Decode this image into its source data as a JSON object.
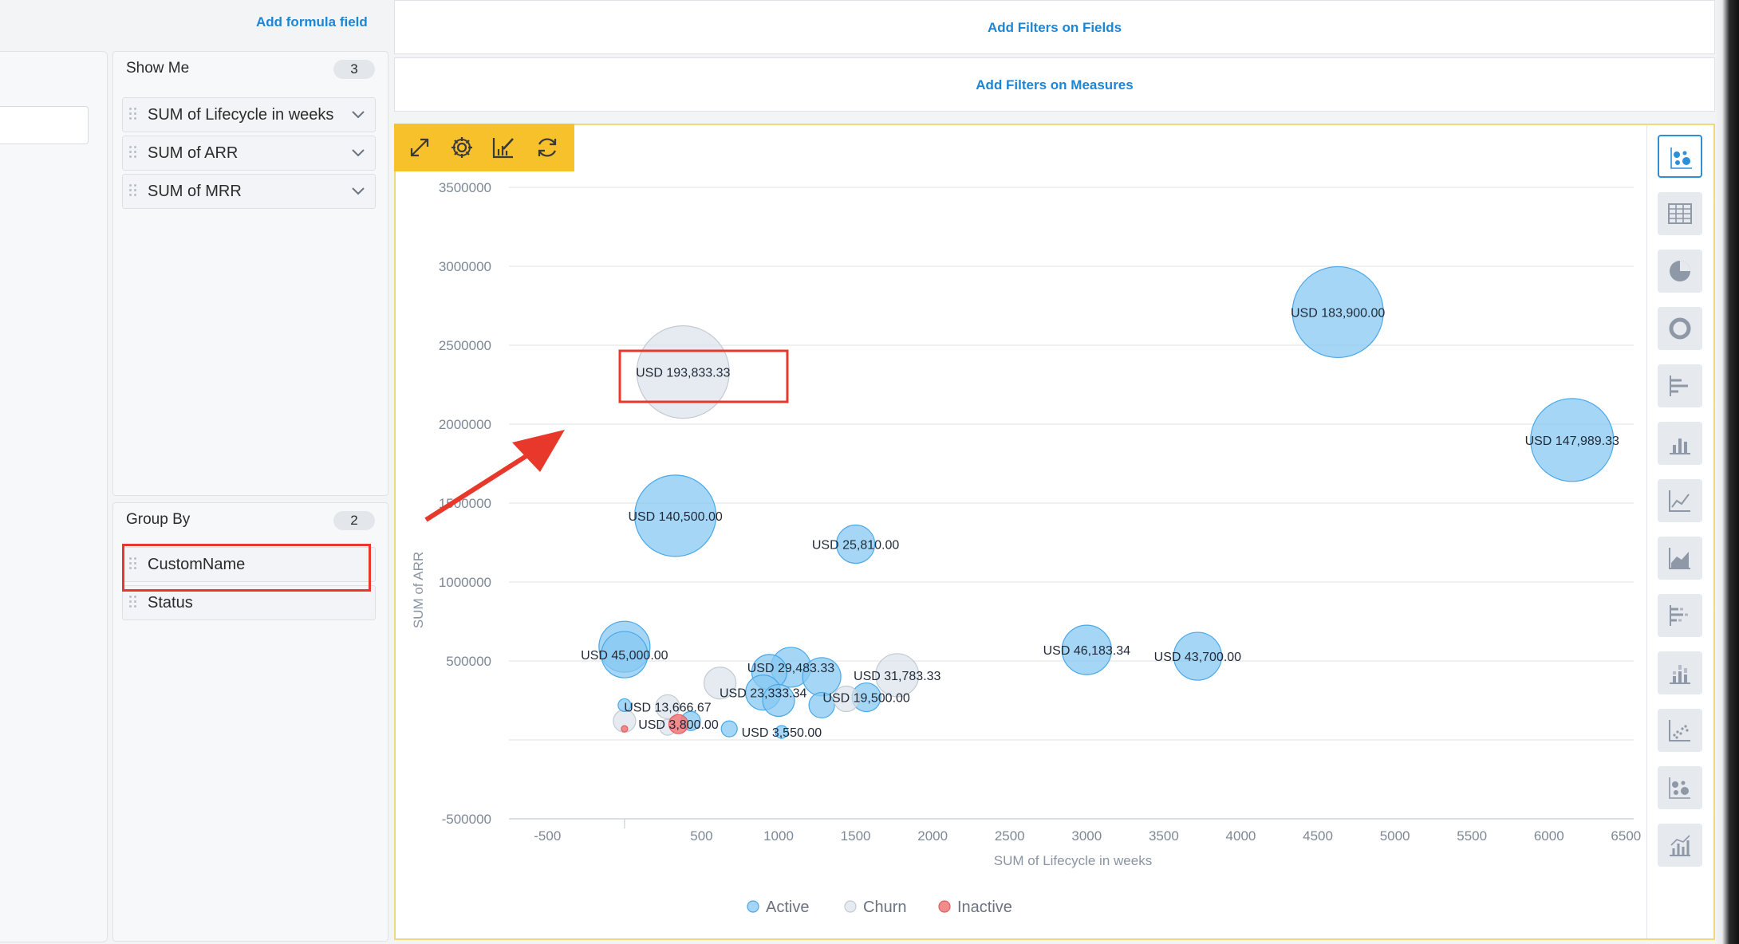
{
  "app": {
    "add_formula_label": "Add formula field"
  },
  "show_me": {
    "title": "Show Me",
    "count": "3",
    "fields": [
      "SUM of Lifecycle in weeks",
      "SUM of ARR",
      "SUM of MRR"
    ]
  },
  "group_by": {
    "title": "Group By",
    "count": "2",
    "fields": [
      "CustomName",
      "Status"
    ]
  },
  "filters": {
    "fields_label": "Add Filters on Fields",
    "measures_label": "Add Filters on Measures"
  },
  "toolbar": [
    "expand-icon",
    "gear-icon",
    "chart-edit-icon",
    "refresh-icon"
  ],
  "chart_types": [
    "bubble",
    "table",
    "pie",
    "donut",
    "horizontal-bar",
    "column",
    "line",
    "area",
    "stacked-horizontal-bar",
    "stacked-column",
    "scatter",
    "bubble",
    "combo"
  ],
  "colors": {
    "Active": "#8ecbf2",
    "Churn": "#e1e5ec",
    "Inactive": "#f08080",
    "accent": "#1c86d6",
    "toolbar": "#f6c12a",
    "annotation": "#e8382c"
  },
  "chart_data": {
    "type": "bubble",
    "xlabel": "SUM of Lifecycle in weeks",
    "ylabel": "SUM of ARR",
    "xlim": [
      -750,
      6550
    ],
    "ylim": [
      -500000,
      3500000
    ],
    "x_ticks": [
      -500,
      500,
      1000,
      1500,
      2000,
      2500,
      3000,
      3500,
      4000,
      4500,
      5000,
      5500,
      6000,
      6500
    ],
    "y_ticks": [
      -500000,
      500000,
      1000000,
      1500000,
      2000000,
      2500000,
      3000000,
      3500000
    ],
    "grid": true,
    "legend": {
      "position": "bottom-center",
      "entries": [
        "Active",
        "Churn",
        "Inactive"
      ]
    },
    "points": [
      {
        "x": 4630,
        "y": 2710000,
        "r": 57,
        "status": "Active",
        "label": "USD 183,900.00"
      },
      {
        "x": 6150,
        "y": 1900000,
        "r": 52,
        "status": "Active",
        "label": "USD 147,989.33"
      },
      {
        "x": 380,
        "y": 2330000,
        "r": 58,
        "status": "Churn",
        "label": "USD 193,833.33"
      },
      {
        "x": 330,
        "y": 1420000,
        "r": 51,
        "status": "Active",
        "label": "USD 140,500.00"
      },
      {
        "x": 1500,
        "y": 1240000,
        "r": 24,
        "status": "Active",
        "label": "USD 25,810.00"
      },
      {
        "x": 3000,
        "y": 570000,
        "r": 31,
        "status": "Active",
        "label": "USD 46,183.34"
      },
      {
        "x": 3720,
        "y": 530000,
        "r": 30,
        "status": "Active",
        "label": "USD 43,700.00"
      },
      {
        "x": 0,
        "y": 590000,
        "r": 32,
        "status": "Active",
        "label": ""
      },
      {
        "x": 0,
        "y": 540000,
        "r": 29,
        "status": "Active",
        "label": "USD 45,000.00"
      },
      {
        "x": 1770,
        "y": 410000,
        "r": 27,
        "status": "Churn",
        "label": "USD 31,783.33"
      },
      {
        "x": 1080,
        "y": 460000,
        "r": 25,
        "status": "Active",
        "label": "USD 29,483.33"
      },
      {
        "x": 940,
        "y": 430000,
        "r": 22,
        "status": "Active",
        "label": ""
      },
      {
        "x": 1280,
        "y": 400000,
        "r": 24,
        "status": "Active",
        "label": ""
      },
      {
        "x": 900,
        "y": 300000,
        "r": 22,
        "status": "Active",
        "label": "USD 23,333.34"
      },
      {
        "x": 1000,
        "y": 250000,
        "r": 20,
        "status": "Active",
        "label": ""
      },
      {
        "x": 620,
        "y": 360000,
        "r": 20,
        "status": "Churn",
        "label": ""
      },
      {
        "x": 1570,
        "y": 270000,
        "r": 18,
        "status": "Active",
        "label": "USD 19,500.00"
      },
      {
        "x": 1280,
        "y": 220000,
        "r": 16,
        "status": "Active",
        "label": ""
      },
      {
        "x": 1440,
        "y": 260000,
        "r": 16,
        "status": "Churn",
        "label": ""
      },
      {
        "x": 280,
        "y": 210000,
        "r": 15,
        "status": "Churn",
        "label": "USD 13,666.67"
      },
      {
        "x": 0,
        "y": 120000,
        "r": 14,
        "status": "Churn",
        "label": ""
      },
      {
        "x": 0,
        "y": 220000,
        "r": 8,
        "status": "Active",
        "label": ""
      },
      {
        "x": 280,
        "y": 80000,
        "r": 10,
        "status": "Churn",
        "label": ""
      },
      {
        "x": 430,
        "y": 120000,
        "r": 12,
        "status": "Active",
        "label": ""
      },
      {
        "x": 350,
        "y": 100000,
        "r": 12,
        "status": "Inactive",
        "label": "USD 3,800.00"
      },
      {
        "x": 0,
        "y": 70000,
        "r": 4,
        "status": "Inactive",
        "label": ""
      },
      {
        "x": 680,
        "y": 70000,
        "r": 10,
        "status": "Active",
        "label": ""
      },
      {
        "x": 1020,
        "y": 50000,
        "r": 8,
        "status": "Active",
        "label": "USD 3,550.00"
      }
    ]
  }
}
